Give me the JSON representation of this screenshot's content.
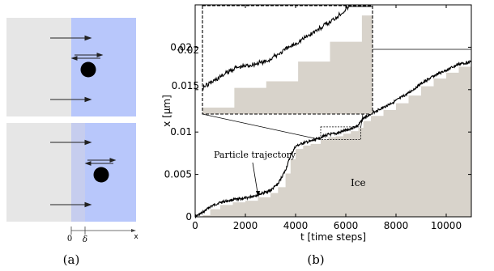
{
  "panel_a": {
    "caption": "(a)",
    "axis_origin_label": "0",
    "delta_label": "δ",
    "x_label": "x",
    "colors": {
      "liquid": "#e6e6e6",
      "ice": "#b8c7fb",
      "particle": "#000000",
      "interface_layer": "#c6cdee"
    }
  },
  "panel_b": {
    "caption": "(b)",
    "annotation_trajectory": "Particle trajectory",
    "annotation_ice": "Ice",
    "colors": {
      "ice_fill": "#d8d3cb",
      "trajectory": "#000000"
    }
  },
  "chart_data": {
    "type": "line",
    "xlabel": "t [time steps]",
    "ylabel": "x [μm]",
    "xlim": [
      0,
      11000
    ],
    "ylim": [
      0,
      0.025
    ],
    "xticks": [
      "0",
      "2000",
      "4000",
      "6000",
      "8000",
      "10000"
    ],
    "yticks": [
      "0",
      "0.005",
      "0.01",
      "0.015",
      "0.02"
    ],
    "inset_yticks": [
      "0.02",
      "0.015"
    ],
    "inset_xrange": [
      5000,
      6600
    ],
    "inset_yrange": [
      0.0091,
      0.0106
    ],
    "series": [
      {
        "name": "Particle trajectory",
        "x": [
          0,
          300,
          600,
          1000,
          1500,
          2000,
          2500,
          3000,
          3300,
          3600,
          3800,
          4000,
          4300,
          4600,
          5000,
          5300,
          5600,
          5900,
          6200,
          6500,
          6700,
          7000,
          7500,
          8000,
          8500,
          9000,
          9500,
          10000,
          10500,
          11000
        ],
        "y": [
          0,
          0.0005,
          0.0012,
          0.0017,
          0.002,
          0.0022,
          0.0026,
          0.0031,
          0.0039,
          0.0055,
          0.0072,
          0.0083,
          0.0087,
          0.0089,
          0.0094,
          0.0097,
          0.0098,
          0.0101,
          0.0104,
          0.0108,
          0.0116,
          0.0122,
          0.0129,
          0.0137,
          0.0146,
          0.0157,
          0.0166,
          0.0173,
          0.018,
          0.0183
        ]
      },
      {
        "name": "Ice",
        "x": [
          0,
          300,
          600,
          1000,
          1500,
          2000,
          2500,
          3000,
          3300,
          3600,
          3800,
          4000,
          4300,
          4600,
          5000,
          5300,
          5600,
          5900,
          6200,
          6500,
          6700,
          7000,
          7500,
          8000,
          8500,
          9000,
          9500,
          10000,
          10500,
          11000
        ],
        "y": [
          0,
          0.0002,
          0.0009,
          0.0014,
          0.0017,
          0.0019,
          0.0023,
          0.0028,
          0.0035,
          0.0051,
          0.0068,
          0.008,
          0.0084,
          0.0086,
          0.0091,
          0.0094,
          0.0095,
          0.0098,
          0.0101,
          0.0105,
          0.0113,
          0.0119,
          0.0126,
          0.0134,
          0.0143,
          0.0154,
          0.0163,
          0.017,
          0.0177,
          0.018
        ]
      }
    ]
  }
}
